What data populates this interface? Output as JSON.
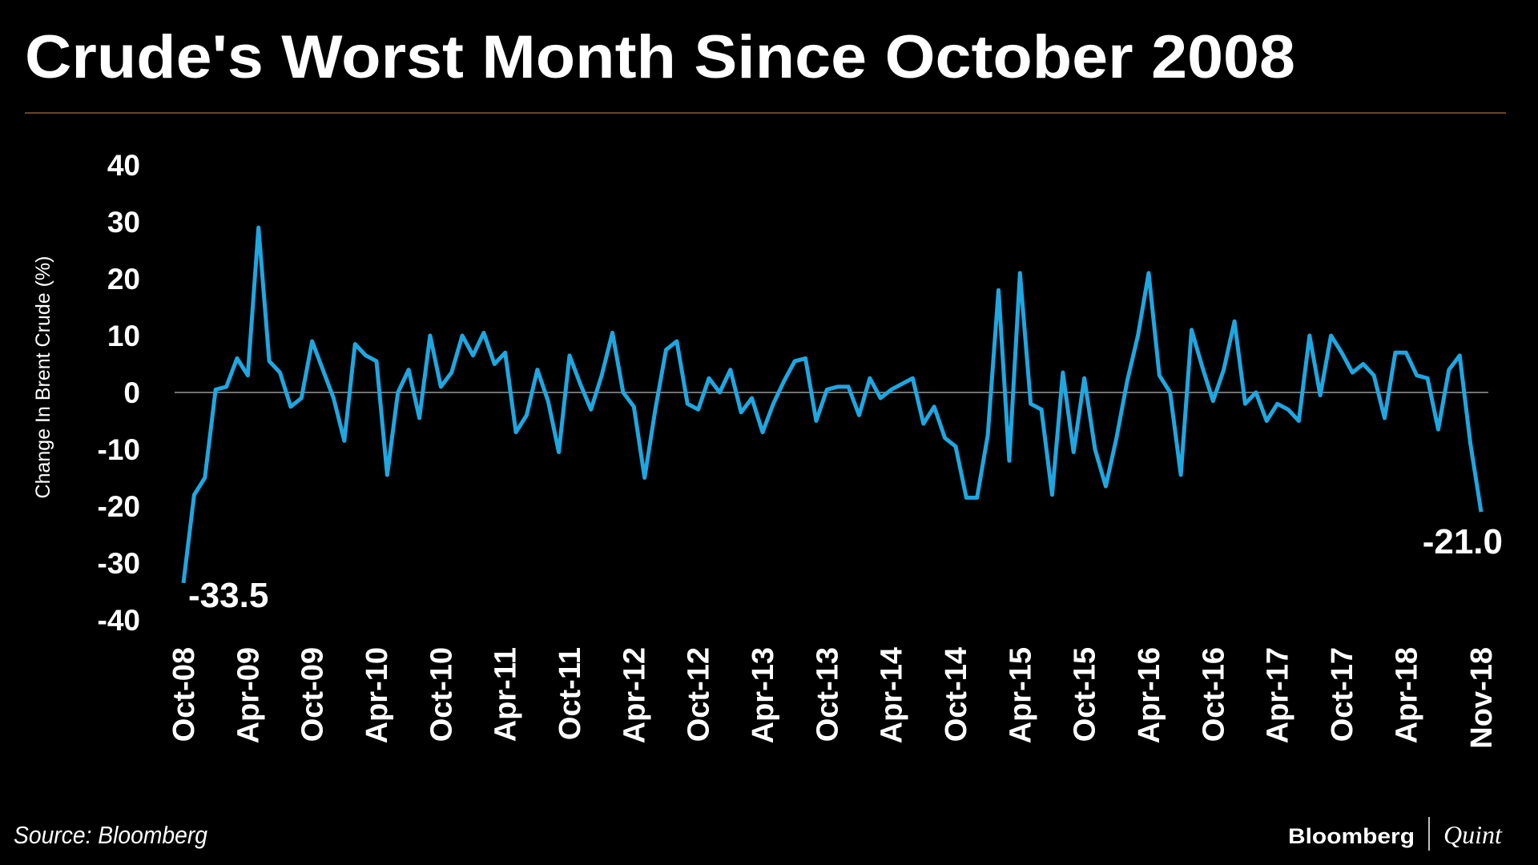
{
  "chart_data": {
    "type": "line",
    "title": "Crude's Worst Month Since October 2008",
    "y_label": "Change In Brent Crude (%)",
    "source": "Source: Bloomberg",
    "brand": [
      "Bloomberg",
      "Quint"
    ],
    "annotations": [
      "-33.5",
      "-21.0"
    ],
    "ylim": [
      -40,
      40
    ],
    "yticks": [
      -40,
      -30,
      -20,
      -10,
      0,
      10,
      20,
      30,
      40
    ],
    "grid": false,
    "categories": [
      "Oct-08",
      null,
      null,
      null,
      null,
      null,
      "Apr-09",
      null,
      null,
      null,
      null,
      null,
      "Oct-09",
      null,
      null,
      null,
      null,
      null,
      "Apr-10",
      null,
      null,
      null,
      null,
      null,
      "Oct-10",
      null,
      null,
      null,
      null,
      null,
      "Apr-11",
      null,
      null,
      null,
      null,
      null,
      "Oct-11",
      null,
      null,
      null,
      null,
      null,
      "Apr-12",
      null,
      null,
      null,
      null,
      null,
      "Oct-12",
      null,
      null,
      null,
      null,
      null,
      "Apr-13",
      null,
      null,
      null,
      null,
      null,
      "Oct-13",
      null,
      null,
      null,
      null,
      null,
      "Apr-14",
      null,
      null,
      null,
      null,
      null,
      "Oct-14",
      null,
      null,
      null,
      null,
      null,
      "Apr-15",
      null,
      null,
      null,
      null,
      null,
      "Oct-15",
      null,
      null,
      null,
      null,
      null,
      "Apr-16",
      null,
      null,
      null,
      null,
      null,
      "Oct-16",
      null,
      null,
      null,
      null,
      null,
      "Apr-17",
      null,
      null,
      null,
      null,
      null,
      "Oct-17",
      null,
      null,
      null,
      null,
      null,
      "Apr-18",
      null,
      null,
      null,
      null,
      null,
      null,
      "Nov-18"
    ],
    "series": [
      {
        "name": "Change In Brent Crude (%)",
        "color": "#1ea7e1",
        "values": [
          -33.5,
          -18,
          -15,
          0.5,
          1,
          6,
          3,
          29,
          5.5,
          3.5,
          -2.5,
          -1,
          9,
          4,
          -1,
          -8.5,
          8.5,
          6.5,
          5.5,
          -14.5,
          0,
          4,
          -4.5,
          10,
          1,
          3.5,
          10,
          6.5,
          10.5,
          5,
          7,
          -7,
          -4,
          4,
          -1.5,
          -10.5,
          6.5,
          1.5,
          -3,
          3,
          10.5,
          0,
          -2.5,
          -15,
          -3,
          7.5,
          9,
          -2,
          -3,
          2.5,
          0,
          4,
          -3.5,
          -1,
          -7,
          -2,
          2,
          5.5,
          6,
          -5,
          0.5,
          1,
          1,
          -4,
          2.5,
          -1,
          0.5,
          1.5,
          2.5,
          -5.5,
          -2.5,
          -8,
          -9.5,
          -18.5,
          -18.5,
          -7.5,
          18,
          -12,
          21,
          -2,
          -3,
          -18,
          3.5,
          -10.5,
          2.5,
          -10,
          -16.5,
          -8,
          2,
          10,
          21,
          3,
          0,
          -14.5,
          11,
          4.5,
          -1.5,
          4,
          12.5,
          -2,
          0,
          -5,
          -2,
          -3,
          -5,
          10,
          -0.5,
          10,
          7,
          3.5,
          5,
          3,
          -4.5,
          7,
          7,
          3,
          2.5,
          -6.5,
          4,
          6.5,
          -9,
          -21
        ]
      }
    ]
  }
}
